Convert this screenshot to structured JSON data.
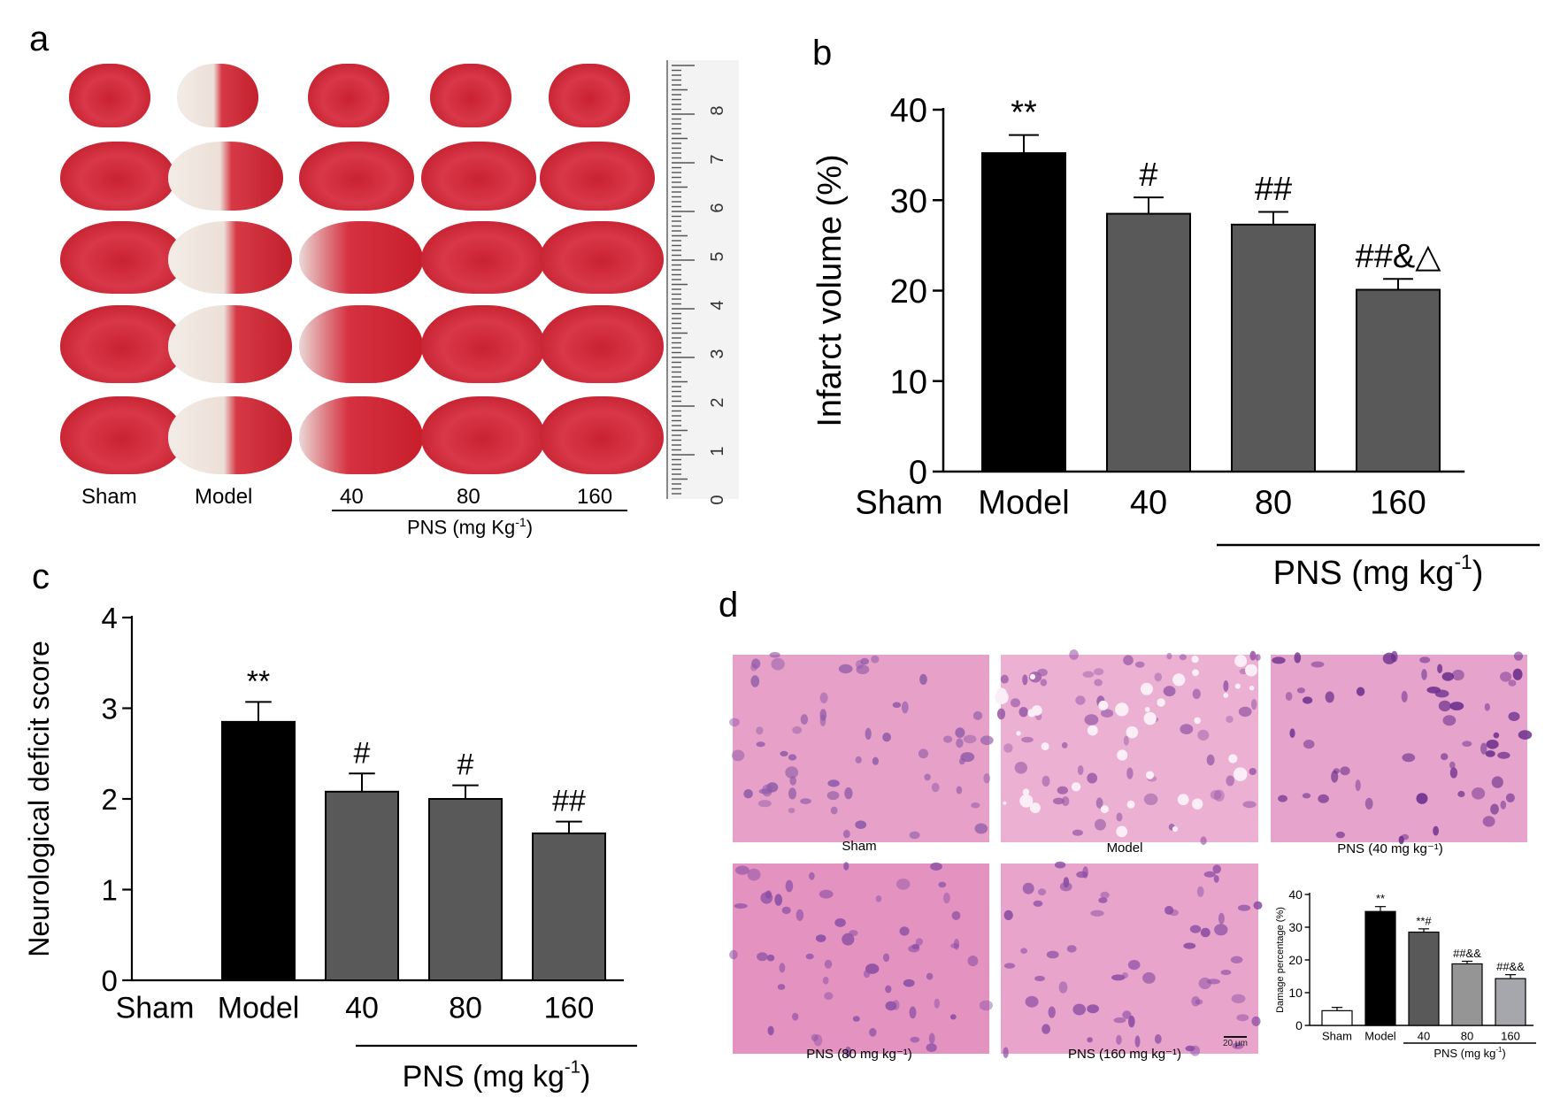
{
  "panels": {
    "a": "a",
    "b": "b",
    "c": "c",
    "d": "d"
  },
  "panel_a": {
    "groups": [
      "Sham",
      "Model",
      "40",
      "80",
      "160"
    ],
    "pns_label": "PNS (mg Kg",
    "pns_sup": "-1",
    "pns_close": ")",
    "ruler_numbers": [
      "8",
      "7",
      "6",
      "5",
      "4",
      "3",
      "2",
      "1",
      "0"
    ],
    "rows": 5
  },
  "panel_d": {
    "captions": [
      "Sham",
      "Model",
      "PNS (40 mg kg⁻¹)",
      "PNS (80 mg kg⁻¹)",
      "PNS (160 mg kg⁻¹)"
    ],
    "scale_bar": "20 μm"
  },
  "chart_data": [
    {
      "panel": "b",
      "type": "bar",
      "categories": [
        "Sham",
        "Model",
        "40",
        "80",
        "160"
      ],
      "values": [
        0,
        35.2,
        28.5,
        27.3,
        20.1
      ],
      "errors": [
        0,
        2.0,
        1.8,
        1.4,
        1.2
      ],
      "annotations": [
        "",
        "**",
        "#",
        "##",
        "##&△"
      ],
      "colors": [
        "#000000",
        "#000000",
        "#595959",
        "#595959",
        "#595959"
      ],
      "ylabel": "Infarct volume (%)",
      "ylim": [
        0,
        40
      ],
      "yticks": [
        0,
        10,
        20,
        30,
        40
      ],
      "group_label": "PNS (mg kg",
      "group_label_sup": "-1",
      "group_label_close": ")"
    },
    {
      "panel": "c",
      "type": "bar",
      "categories": [
        "Sham",
        "Model",
        "40",
        "80",
        "160"
      ],
      "values": [
        0,
        2.85,
        2.08,
        2.0,
        1.62
      ],
      "errors": [
        0,
        0.22,
        0.2,
        0.15,
        0.13
      ],
      "annotations": [
        "",
        "**",
        "#",
        "#",
        "##"
      ],
      "colors": [
        "#000000",
        "#000000",
        "#595959",
        "#595959",
        "#595959"
      ],
      "ylabel": "Neurological deficit score",
      "ylim": [
        0,
        4
      ],
      "yticks": [
        0,
        1,
        2,
        3,
        4
      ],
      "group_label": "PNS (mg kg",
      "group_label_sup": "-1",
      "group_label_close": ")"
    },
    {
      "panel": "d-inset",
      "type": "bar",
      "categories": [
        "Sham",
        "Model",
        "40",
        "80",
        "160"
      ],
      "values": [
        4.5,
        34.8,
        28.5,
        18.8,
        14.3
      ],
      "errors": [
        1.0,
        1.5,
        1.0,
        0.8,
        1.2
      ],
      "annotations": [
        "",
        "**",
        "**#",
        "##&&",
        "##&&"
      ],
      "colors": [
        "#ffffff",
        "#000000",
        "#595959",
        "#959595",
        "#a6a6ad"
      ],
      "ylabel": "Damage percentage (%)",
      "ylim": [
        0,
        40
      ],
      "yticks": [
        0,
        10,
        20,
        30,
        40
      ],
      "group_label": "PNS (mg kg",
      "group_label_sup": "-1",
      "group_label_close": ")"
    }
  ]
}
